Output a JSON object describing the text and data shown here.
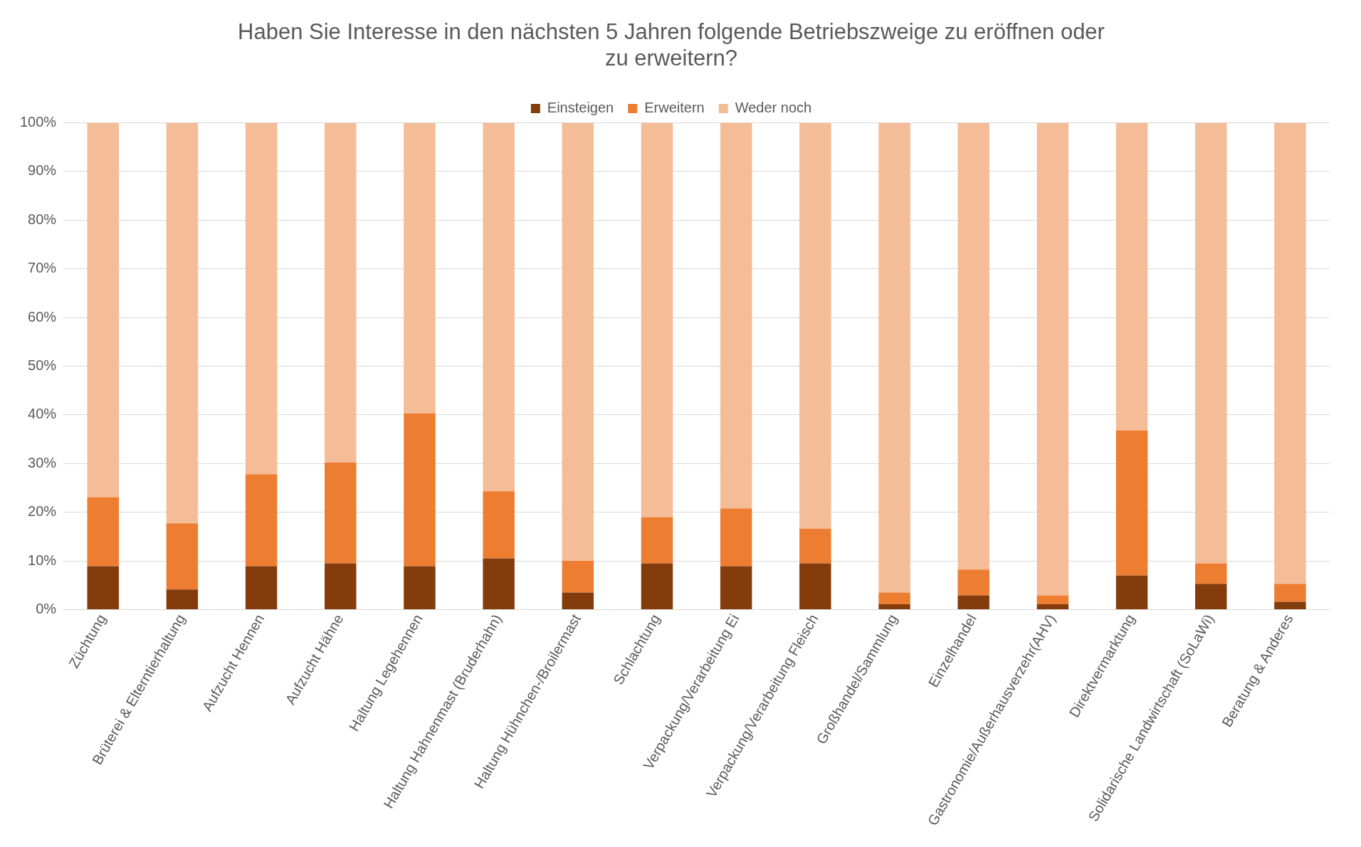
{
  "chart_data": {
    "type": "bar",
    "stacked": true,
    "title": [
      "Haben Sie Interesse in den nächsten 5 Jahren folgende Betriebszweige zu eröffnen oder",
      "zu erweitern?"
    ],
    "categories": [
      "Züchtung",
      "Brüterei & Elterntierhaltung",
      "Aufzucht Hennen",
      "Aufzucht Hähne",
      "Haltung Legehennen",
      "Haltung Hahnenmast (Bruderhahn)",
      "Haltung Hühnchen-/Broilermast",
      "Schlachtung",
      "Verpackung/Verarbeitung Ei",
      "Verpackung/Verarbeitung Fleisch",
      "Großhandel/Sammlung",
      "Einzelhandel",
      "Gastronomie/Außerhausverzehr(AHV)",
      "Direktvermarktung",
      "Solidarische Landwirtschaft (SoLaWi)",
      "Beratung & Anderes"
    ],
    "series": [
      {
        "name": "Einsteigen",
        "color": "#843c0c",
        "values": [
          8.9,
          4.1,
          8.9,
          9.5,
          8.9,
          10.5,
          3.5,
          9.5,
          8.9,
          9.5,
          1.1,
          2.9,
          1.1,
          7.0,
          5.3,
          1.6
        ]
      },
      {
        "name": "Erweitern",
        "color": "#ed7d31",
        "values": [
          14.2,
          13.6,
          18.9,
          20.7,
          31.4,
          13.8,
          6.5,
          9.5,
          11.9,
          7.1,
          2.4,
          5.3,
          1.8,
          29.8,
          4.2,
          3.7
        ]
      },
      {
        "name": "Weder noch",
        "color": "#f5bc98",
        "values": [
          76.9,
          82.3,
          72.2,
          69.8,
          59.7,
          75.7,
          90.0,
          81.0,
          79.2,
          83.4,
          96.5,
          91.8,
          97.1,
          63.2,
          90.5,
          94.7
        ]
      }
    ],
    "ylim": [
      0,
      100
    ],
    "yticks": [
      {
        "value": 0,
        "label": "0%"
      },
      {
        "value": 10,
        "label": "10%"
      },
      {
        "value": 20,
        "label": "20%"
      },
      {
        "value": 30,
        "label": "30%"
      },
      {
        "value": 40,
        "label": "40%"
      },
      {
        "value": 50,
        "label": "50%"
      },
      {
        "value": 60,
        "label": "60%"
      },
      {
        "value": 70,
        "label": "70%"
      },
      {
        "value": 80,
        "label": "80%"
      },
      {
        "value": 90,
        "label": "90%"
      },
      {
        "value": 100,
        "label": "100%"
      }
    ],
    "grid": "y",
    "legend": "top"
  }
}
